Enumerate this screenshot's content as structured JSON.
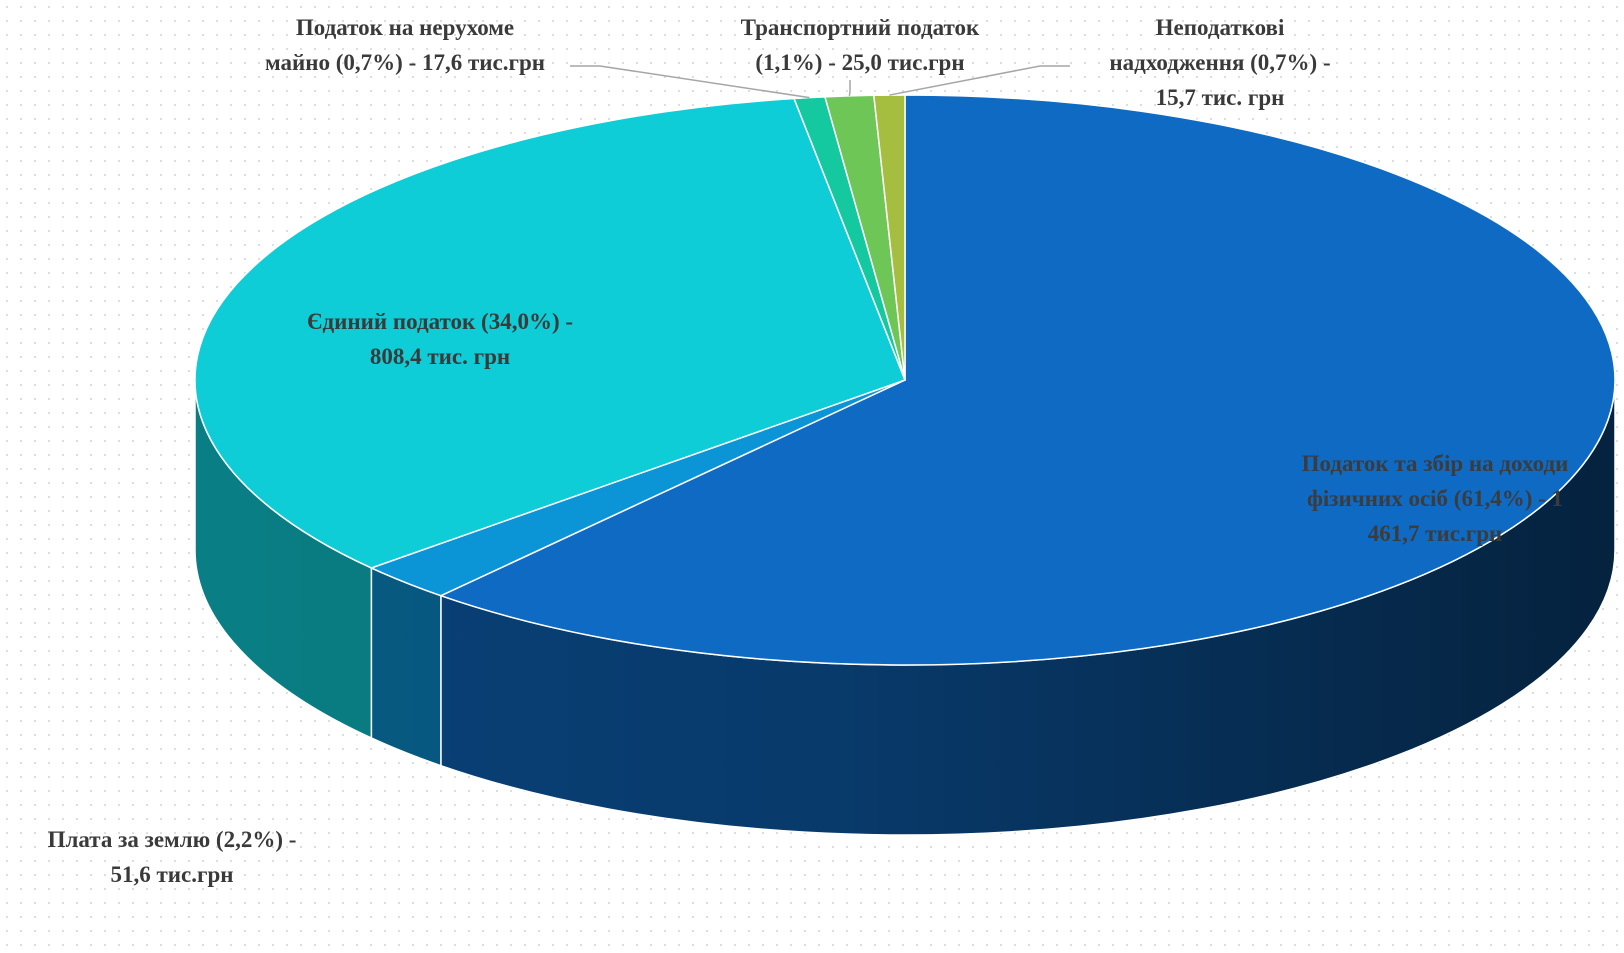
{
  "chart_data": {
    "type": "pie",
    "title": "",
    "start_angle_deg": 90,
    "direction": "clockwise",
    "slices": [
      {
        "name": "Податок та збір на доходи фізичних осіб",
        "percent": 61.4,
        "value": 1461.7,
        "label": "Податок та збір на доходи\nфізичних осіб (61,4%) - 1\n461,7 тис.грн",
        "color": "#0f6ac3"
      },
      {
        "name": "Плата за землю",
        "percent": 2.2,
        "value": 51.6,
        "label": "Плата за землю (2,2%) -\n51,6 тис.грн",
        "color": "#0c95d6"
      },
      {
        "name": "Єдиний податок",
        "percent": 34.0,
        "value": 808.4,
        "label": "Єдиний податок (34,0%) -\n808,4 тис. грн",
        "color": "#0ecdd6"
      },
      {
        "name": "Податок на нерухоме майно",
        "percent": 0.7,
        "value": 17.6,
        "label": "Податок на нерухоме\nмайно (0,7%) - 17,6 тис.грн",
        "color": "#14c9a0"
      },
      {
        "name": "Транспортний податок",
        "percent": 1.1,
        "value": 25.0,
        "label": "Транспортний податок\n(1,1%) - 25,0 тис.грн",
        "color": "#6ec657"
      },
      {
        "name": "Неподаткові надходження",
        "percent": 0.7,
        "value": 15.7,
        "label": "Неподаткові\nнадходження (0,7%) -\n15,7 тис. грн",
        "color": "#a5be3f"
      }
    ],
    "legend": "none"
  }
}
